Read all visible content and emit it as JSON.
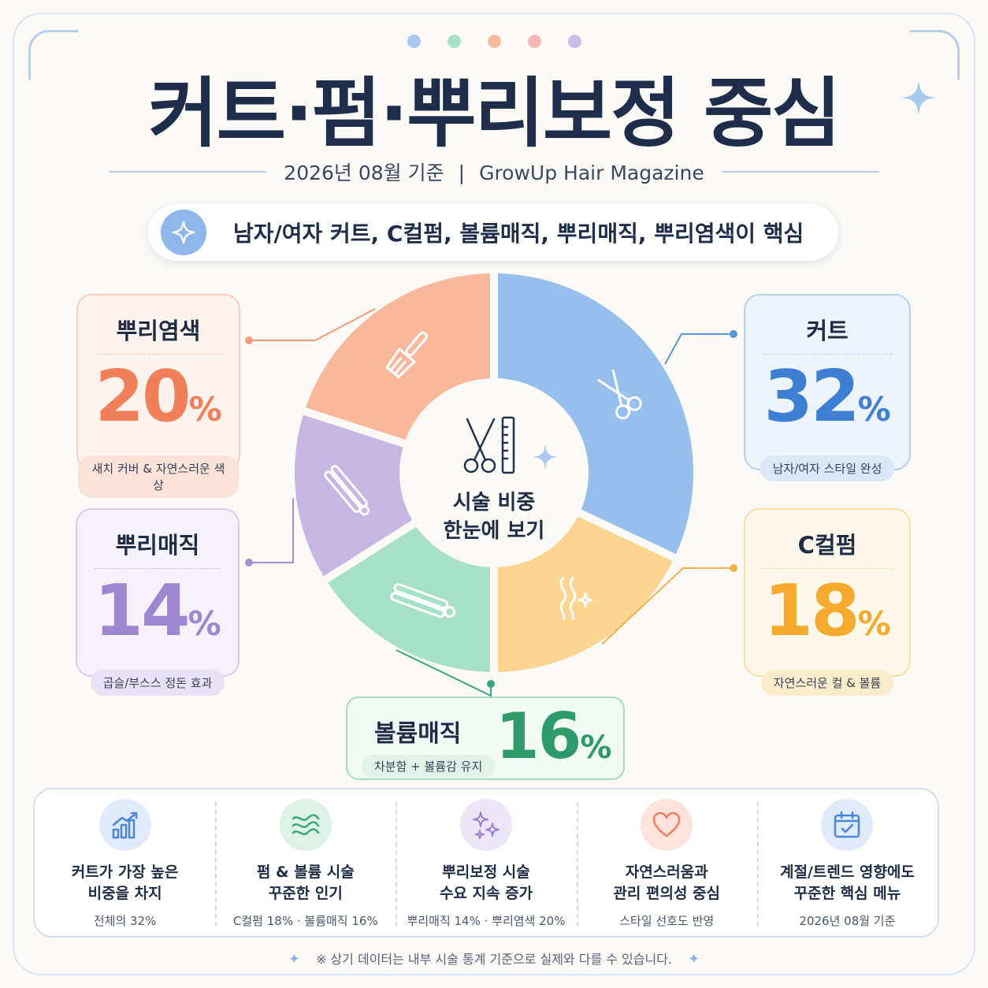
{
  "title": "커트·펌·뿌리보정 중심",
  "subtitle": {
    "date": "2026년 08월 기준",
    "separator": "|",
    "source": "GrowUp Hair Magazine"
  },
  "highlight": "남자/여자 커트, C컬펌, 볼륨매직, 뿌리매직, 뿌리염색이 핵심",
  "center_label": {
    "line1": "시술 비중",
    "line2": "한눈에 보기"
  },
  "chart_data": {
    "type": "pie",
    "title": "커트·펌·뿌리보정 중심",
    "categories": [
      "커트",
      "C컬펌",
      "볼륨매직",
      "뿌리매직",
      "뿌리염색"
    ],
    "values": [
      32,
      18,
      16,
      14,
      20
    ],
    "unit": "%",
    "colors": [
      "#96bfec",
      "#fcd592",
      "#a7e0c8",
      "#c6b6e4",
      "#f9b79b"
    ],
    "icons": [
      "scissors-icon",
      "curl-icon",
      "flat-iron-icon",
      "straightener-icon",
      "dye-brush-icon"
    ]
  },
  "cards": {
    "cut": {
      "name": "커트",
      "value": "32",
      "unit": "%",
      "note": "남자/여자 스타일 완성",
      "color": "#3f7fd3"
    },
    "ccurl": {
      "name": "C컬펌",
      "value": "18",
      "unit": "%",
      "note": "자연스러운 컬 & 볼륨",
      "color": "#f5aa2d"
    },
    "volume": {
      "name": "볼륨매직",
      "value": "16",
      "unit": "%",
      "note": "차분함 + 볼륨감 유지",
      "color": "#2e9a6c"
    },
    "rootmagic": {
      "name": "뿌리매직",
      "value": "14",
      "unit": "%",
      "note": "곱슬/부스스 정돈 효과",
      "color": "#9d87d1"
    },
    "rootdye": {
      "name": "뿌리염색",
      "value": "20",
      "unit": "%",
      "note": "새치 커버 & 자연스러운 색상",
      "color": "#f1805a"
    }
  },
  "features": [
    {
      "head1": "커트가 가장 높은",
      "head2": "비중을 차지",
      "sub": "전체의 32%",
      "icon": "bar-chart-icon"
    },
    {
      "head1": "펌 & 볼륨 시술",
      "head2": "꾸준한 인기",
      "sub": "C컬펌 18% · 볼륨매직 16%",
      "icon": "waves-icon"
    },
    {
      "head1": "뿌리보정 시술",
      "head2": "수요 지속 증가",
      "sub": "뿌리매직 14% · 뿌리염색 20%",
      "icon": "sparkles-icon"
    },
    {
      "head1": "자연스러움과",
      "head2": "관리 편의성 중심",
      "sub": "스타일 선호도 반영",
      "icon": "heart-icon"
    },
    {
      "head1": "계절/트렌드 영향에도",
      "head2": "꾸준한 핵심 메뉴",
      "sub": "2026년 08월 기준",
      "icon": "calendar-icon"
    }
  ],
  "footnote": "※ 상기 데이터는 내부 시술 통계 기준으로 실제와 다를 수 있습니다."
}
